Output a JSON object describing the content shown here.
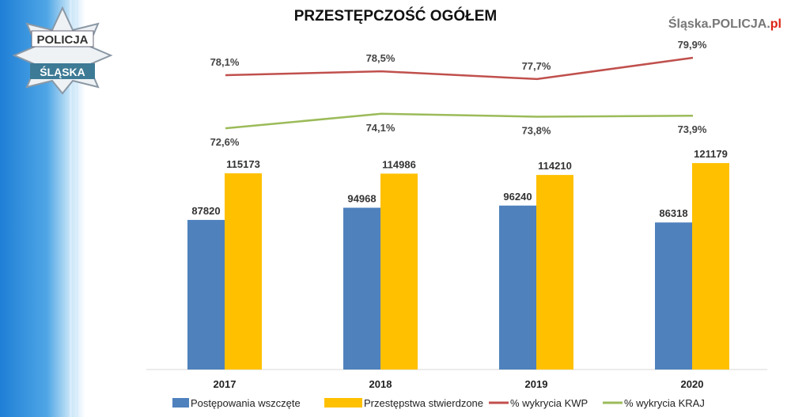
{
  "watermark": {
    "text_main": "Śląska.POLICJA.",
    "text_suffix": "pl"
  },
  "logo": {
    "top": "POLICJA",
    "bottom": "ŚLĄSKA"
  },
  "chart_data": {
    "type": "bar",
    "title": "PRZESTĘPCZOŚĆ OGÓŁEM",
    "categories": [
      "2017",
      "2018",
      "2019",
      "2020"
    ],
    "legend_position": "bottom",
    "grid": false,
    "series": [
      {
        "name": "Postępowania wszczęte",
        "kind": "bar",
        "color": "#4f81bd",
        "values": [
          87820,
          94968,
          96240,
          86318
        ],
        "labels": [
          "87820",
          "94968",
          "96240",
          "86318"
        ]
      },
      {
        "name": "Przestępstwa stwierdzone",
        "kind": "bar",
        "color": "#ffc000",
        "values": [
          115173,
          114986,
          114210,
          121179
        ],
        "labels": [
          "115173",
          "114986",
          "114210",
          "121179"
        ]
      },
      {
        "name": "% wykrycia KWP",
        "kind": "line",
        "color": "#c0504d",
        "values": [
          78.1,
          78.5,
          77.7,
          79.9
        ],
        "labels": [
          "78,1%",
          "78,5%",
          "77,7%",
          "79,9%"
        ]
      },
      {
        "name": "% wykrycia KRAJ",
        "kind": "line",
        "color": "#9bbb59",
        "values": [
          72.6,
          74.1,
          73.8,
          73.9
        ],
        "labels": [
          "72,6%",
          "74,1%",
          "73,8%",
          "73,9%"
        ]
      }
    ]
  }
}
